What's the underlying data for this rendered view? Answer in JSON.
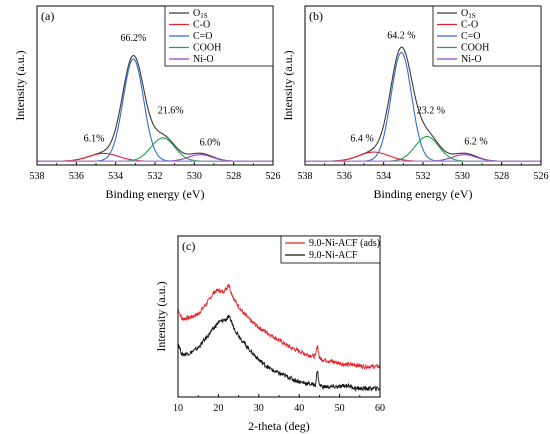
{
  "chart_data": [
    {
      "type": "line",
      "panel_label": "(a)",
      "xlabel": "Binding energy (eV)",
      "ylabel": "Intensity (a.u.)",
      "xlim": [
        538,
        526
      ],
      "x_reversed": true,
      "xticks": [
        538,
        536,
        534,
        532,
        530,
        528,
        526
      ],
      "grid": false,
      "legend_position": "top-right",
      "series": [
        {
          "name": "O1S",
          "color": "#3a3a3a",
          "peaks": [
            {
              "center": 534.6,
              "height": 0.06,
              "width": 0.75
            },
            {
              "center": 533.1,
              "height": 0.8,
              "width": 0.55
            },
            {
              "center": 531.6,
              "height": 0.19,
              "width": 0.6
            },
            {
              "center": 529.7,
              "height": 0.06,
              "width": 0.6
            }
          ]
        },
        {
          "name": "C-O",
          "color": "#e8202a",
          "peaks": [
            {
              "center": 534.6,
              "height": 0.06,
              "width": 0.75
            }
          ]
        },
        {
          "name": "C=O",
          "color": "#2f6fd6",
          "peaks": [
            {
              "center": 533.1,
              "height": 0.79,
              "width": 0.52
            }
          ]
        },
        {
          "name": "COOH",
          "color": "#1aa34a",
          "peaks": [
            {
              "center": 531.6,
              "height": 0.18,
              "width": 0.6
            }
          ]
        },
        {
          "name": "Ni-O",
          "color": "#9b3fc4",
          "peaks": [
            {
              "center": 529.7,
              "height": 0.05,
              "width": 0.6
            }
          ]
        }
      ],
      "annotations": [
        {
          "text": "66.2%",
          "x": 533.1,
          "y": 0.93
        },
        {
          "text": "6.1%",
          "x": 535.1,
          "y": 0.15
        },
        {
          "text": "21.6%",
          "x": 531.2,
          "y": 0.37
        },
        {
          "text": "6.0%",
          "x": 529.2,
          "y": 0.12
        }
      ]
    },
    {
      "type": "line",
      "panel_label": "(b)",
      "xlabel": "Binding energy (eV)",
      "ylabel": "Intensity (a.u.)",
      "xlim": [
        538,
        526
      ],
      "x_reversed": true,
      "xticks": [
        538,
        536,
        534,
        532,
        530,
        528,
        526
      ],
      "grid": false,
      "legend_position": "top-right",
      "series": [
        {
          "name": "O1S",
          "color": "#3a3a3a",
          "peaks": [
            {
              "center": 534.5,
              "height": 0.07,
              "width": 0.75
            },
            {
              "center": 533.1,
              "height": 0.85,
              "width": 0.55
            },
            {
              "center": 531.8,
              "height": 0.2,
              "width": 0.6
            },
            {
              "center": 529.9,
              "height": 0.06,
              "width": 0.6
            }
          ]
        },
        {
          "name": "C-O",
          "color": "#e8202a",
          "peaks": [
            {
              "center": 534.5,
              "height": 0.07,
              "width": 0.75
            }
          ]
        },
        {
          "name": "C=O",
          "color": "#2f6fd6",
          "peaks": [
            {
              "center": 533.1,
              "height": 0.84,
              "width": 0.52
            }
          ]
        },
        {
          "name": "COOH",
          "color": "#1aa34a",
          "peaks": [
            {
              "center": 531.8,
              "height": 0.19,
              "width": 0.6
            }
          ]
        },
        {
          "name": "Ni-O",
          "color": "#9b3fc4",
          "peaks": [
            {
              "center": 529.9,
              "height": 0.05,
              "width": 0.6
            }
          ]
        }
      ],
      "annotations": [
        {
          "text": "64.2 %",
          "x": 533.1,
          "y": 0.95
        },
        {
          "text": "6.4 %",
          "x": 535.1,
          "y": 0.15
        },
        {
          "text": "23.2 %",
          "x": 531.6,
          "y": 0.37
        },
        {
          "text": "6.2 %",
          "x": 529.3,
          "y": 0.13
        }
      ]
    },
    {
      "type": "line",
      "panel_label": "(c)",
      "xlabel": "2-theta (deg)",
      "ylabel": "Intensity (a.u.)",
      "xlim": [
        10,
        60
      ],
      "xticks": [
        10,
        20,
        30,
        40,
        50,
        60
      ],
      "grid": false,
      "legend_position": "top-left",
      "series": [
        {
          "name": "9.0-Ni-ACF (ads)",
          "color": "#e8202a",
          "x": [
            10,
            11,
            13,
            15,
            17,
            19,
            20,
            21,
            22,
            22.5,
            23,
            24,
            26,
            28,
            30,
            32,
            34,
            36,
            38,
            40,
            42,
            44,
            44.5,
            45,
            46,
            48,
            50,
            52,
            54,
            56,
            58,
            60
          ],
          "y": [
            0.52,
            0.46,
            0.47,
            0.49,
            0.55,
            0.62,
            0.63,
            0.62,
            0.64,
            0.67,
            0.63,
            0.57,
            0.5,
            0.45,
            0.41,
            0.38,
            0.35,
            0.32,
            0.29,
            0.27,
            0.25,
            0.24,
            0.31,
            0.23,
            0.22,
            0.21,
            0.2,
            0.19,
            0.19,
            0.18,
            0.18,
            0.18
          ]
        },
        {
          "name": "9.0-Ni-ACF",
          "color": "#111111",
          "x": [
            10,
            11,
            13,
            15,
            17,
            19,
            20,
            21,
            22,
            22.5,
            23,
            24,
            26,
            28,
            30,
            32,
            34,
            36,
            38,
            40,
            42,
            44,
            44.5,
            45,
            46,
            48,
            50,
            52,
            54,
            56,
            58,
            60
          ],
          "y": [
            0.32,
            0.25,
            0.26,
            0.29,
            0.35,
            0.41,
            0.44,
            0.45,
            0.46,
            0.47,
            0.46,
            0.4,
            0.33,
            0.27,
            0.22,
            0.18,
            0.15,
            0.13,
            0.11,
            0.09,
            0.08,
            0.07,
            0.16,
            0.07,
            0.06,
            0.06,
            0.06,
            0.07,
            0.05,
            0.05,
            0.05,
            0.05
          ]
        }
      ]
    }
  ]
}
